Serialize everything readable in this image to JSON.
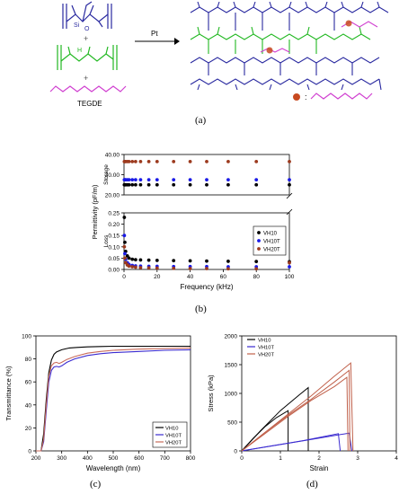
{
  "panel_labels": {
    "a": "(a)",
    "b": "(b)",
    "c": "(c)",
    "d": "(d)"
  },
  "scheme": {
    "arrow_label": "Pt",
    "plus": "+",
    "tegde_label": "TEGDE",
    "atom_si": "Si",
    "atom_o": "O",
    "atom_h": "H",
    "legend_colon": ":",
    "colors": {
      "vinyl_polymer": "#2a2aa0",
      "hydride_polymer": "#22b822",
      "tegde": "#d040d0",
      "legend_ball": "#c84a20"
    }
  },
  "chart_data": [
    {
      "id": "b",
      "type": "scatter",
      "title": "",
      "xlabel": "Frequency (kHz)",
      "ylabel": "Permittivity (pF/m)",
      "sub_ylabels": [
        "Storage",
        "Loss"
      ],
      "xlim": [
        0,
        100
      ],
      "xticks": [
        "0",
        "20",
        "40",
        "60",
        "80",
        "100"
      ],
      "upper_yticks": [
        "40.00",
        "30.00",
        "20.00"
      ],
      "lower_yticks": [
        "0.25",
        "0.20",
        "0.15",
        "0.10",
        "0.05",
        "0.00"
      ],
      "upper_ylim": [
        20,
        40
      ],
      "lower_ylim": [
        0,
        0.25
      ],
      "x": [
        0.2,
        0.5,
        1,
        2,
        3,
        5,
        7,
        10,
        15,
        20,
        30,
        40,
        50,
        63,
        80,
        100
      ],
      "legend": "right",
      "series": [
        {
          "name": "VH10",
          "color": "#000000",
          "storage": [
            25,
            25,
            25,
            25,
            25,
            25,
            25,
            25,
            25,
            25,
            25,
            25,
            25,
            25,
            25,
            25
          ],
          "loss": [
            0.23,
            0.12,
            0.08,
            0.06,
            0.05,
            0.045,
            0.043,
            0.042,
            0.041,
            0.04,
            0.039,
            0.038,
            0.037,
            0.036,
            0.035,
            0.034
          ]
        },
        {
          "name": "VH10T",
          "color": "#1a1ae6",
          "storage": [
            27.5,
            27.5,
            27.5,
            27.5,
            27.5,
            27.5,
            27.5,
            27.5,
            27.5,
            27.5,
            27.5,
            27.5,
            27.5,
            27.5,
            27.5,
            27.5
          ],
          "loss": [
            0.15,
            0.07,
            0.045,
            0.03,
            0.022,
            0.018,
            0.016,
            0.015,
            0.014,
            0.014,
            0.013,
            0.013,
            0.013,
            0.012,
            0.012,
            0.012
          ]
        },
        {
          "name": "VH20T",
          "color": "#9c3a1e",
          "storage": [
            36.5,
            36.5,
            36.5,
            36.5,
            36.5,
            36.5,
            36.5,
            36.5,
            36.5,
            36.5,
            36.5,
            36.5,
            36.5,
            36.5,
            36.5,
            36.5
          ],
          "loss": [
            0.1,
            0.05,
            0.03,
            0.02,
            0.015,
            0.012,
            0.01,
            0.008,
            0.007,
            0.006,
            0.005,
            0.004,
            0.004,
            0.003,
            0.003,
            0.03
          ]
        }
      ]
    },
    {
      "id": "c",
      "type": "line",
      "title": "",
      "xlabel": "Wavelength (nm)",
      "ylabel": "Transmittance (%)",
      "xlim": [
        200,
        800
      ],
      "ylim": [
        0,
        100
      ],
      "xticks": [
        "200",
        "300",
        "400",
        "500",
        "600",
        "700",
        "800"
      ],
      "yticks": [
        "0",
        "20",
        "40",
        "60",
        "80",
        "100"
      ],
      "legend": "bottom-right",
      "series": [
        {
          "name": "VH10",
          "color": "#000000",
          "x": [
            200,
            220,
            230,
            240,
            250,
            260,
            270,
            280,
            300,
            330,
            360,
            400,
            450,
            500,
            600,
            700,
            800
          ],
          "y": [
            0,
            0,
            15,
            45,
            68,
            79,
            84,
            86,
            88,
            89.5,
            90,
            90.5,
            90.8,
            91,
            91,
            91,
            91
          ]
        },
        {
          "name": "VH10T",
          "color": "#3a2ad0",
          "x": [
            200,
            220,
            230,
            240,
            250,
            260,
            270,
            280,
            290,
            300,
            320,
            350,
            400,
            450,
            500,
            600,
            700,
            800
          ],
          "y": [
            0,
            0,
            8,
            35,
            60,
            70,
            73,
            73.5,
            73,
            74,
            77,
            80,
            83,
            84.5,
            85.5,
            86.5,
            87.5,
            88
          ]
        },
        {
          "name": "VH20T",
          "color": "#c86a5a",
          "x": [
            200,
            220,
            230,
            240,
            250,
            260,
            270,
            280,
            290,
            300,
            320,
            350,
            400,
            450,
            500,
            600,
            700,
            800
          ],
          "y": [
            0,
            0,
            10,
            40,
            65,
            74,
            76.5,
            77,
            76,
            77,
            79.5,
            82,
            85,
            86.5,
            87.5,
            88.5,
            89,
            89.5
          ]
        }
      ]
    },
    {
      "id": "d",
      "type": "line",
      "title": "",
      "xlabel": "Strain",
      "ylabel": "Stress (kPa)",
      "xlim": [
        0,
        4
      ],
      "ylim": [
        0,
        2000
      ],
      "xticks": [
        "0",
        "1",
        "2",
        "3",
        "4"
      ],
      "yticks": [
        "0",
        "500",
        "1000",
        "1500",
        "2000"
      ],
      "legend": "top-left",
      "series": [
        {
          "name": "VH10",
          "color": "#000000",
          "curves": [
            {
              "x": [
                0,
                0.3,
                0.6,
                0.9,
                1.2,
                1.2
              ],
              "y": [
                0,
                220,
                420,
                580,
                700,
                0
              ]
            },
            {
              "x": [
                0,
                0.5,
                1.0,
                1.5,
                1.72,
                1.72
              ],
              "y": [
                0,
                360,
                700,
                980,
                1100,
                0
              ]
            }
          ]
        },
        {
          "name": "VH10T",
          "color": "#3a2ad0",
          "curves": [
            {
              "x": [
                0,
                0.8,
                1.6,
                2.5,
                2.55
              ],
              "y": [
                0,
                90,
                180,
                300,
                0
              ]
            },
            {
              "x": [
                0,
                0.9,
                1.8,
                2.78,
                2.85
              ],
              "y": [
                0,
                100,
                200,
                310,
                0
              ]
            }
          ]
        },
        {
          "name": "VH20T",
          "color": "#c0604a",
          "curves": [
            {
              "x": [
                0,
                0.6,
                1.2,
                1.8,
                2.4,
                2.78,
                2.8
              ],
              "y": [
                0,
                320,
                620,
                900,
                1200,
                1400,
                0
              ]
            },
            {
              "x": [
                0,
                0.6,
                1.2,
                1.8,
                2.4,
                2.82,
                2.88
              ],
              "y": [
                0,
                320,
                640,
                960,
                1300,
                1530,
                0
              ]
            },
            {
              "x": [
                0,
                0.6,
                1.2,
                1.8,
                2.4,
                2.72,
                2.75
              ],
              "y": [
                0,
                300,
                600,
                880,
                1120,
                1280,
                0
              ]
            }
          ]
        }
      ]
    }
  ]
}
